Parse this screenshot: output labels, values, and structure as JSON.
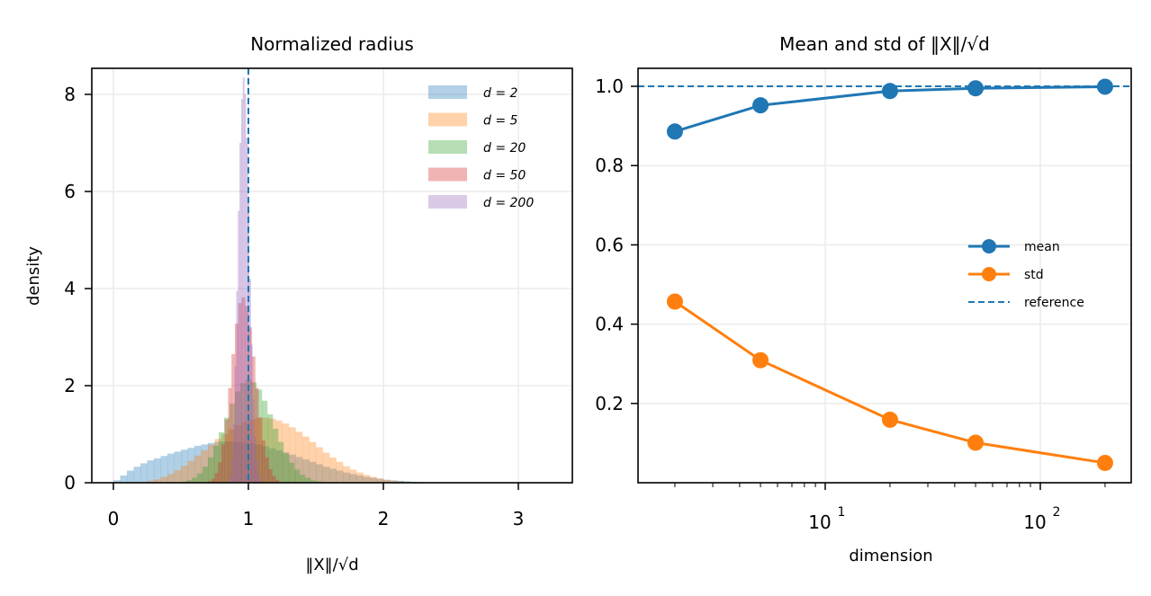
{
  "chart_data": [
    {
      "type": "histogram",
      "title": "Normalized radius",
      "xlabel": "‖X‖/√d",
      "ylabel": "density",
      "xlim": [
        -0.17,
        3.4
      ],
      "ylim": [
        0,
        8.5
      ],
      "xticks": [
        "0",
        "1",
        "2",
        "3"
      ],
      "xtick_values": [
        0,
        1,
        2,
        3
      ],
      "yticks": [
        "0",
        "2",
        "4",
        "6",
        "8"
      ],
      "ytick_values": [
        0,
        2,
        4,
        6,
        8
      ],
      "grid": true,
      "legend_position": "upper-right",
      "reference_line_x": 1,
      "series": [
        {
          "name": "d = 2",
          "d": 2,
          "color": "#1f77b4",
          "alpha": 0.35,
          "bin_start": 0.0,
          "bin_width": 0.05,
          "values": [
            0.05,
            0.15,
            0.25,
            0.33,
            0.4,
            0.46,
            0.5,
            0.55,
            0.6,
            0.64,
            0.68,
            0.72,
            0.76,
            0.79,
            0.82,
            0.84,
            0.85,
            0.85,
            0.84,
            0.83,
            0.81,
            0.79,
            0.75,
            0.71,
            0.67,
            0.63,
            0.58,
            0.53,
            0.48,
            0.43,
            0.38,
            0.33,
            0.29,
            0.25,
            0.21,
            0.18,
            0.15,
            0.12,
            0.1,
            0.08,
            0.06,
            0.05,
            0.04,
            0.03,
            0.02,
            0.015,
            0.01
          ]
        },
        {
          "name": "d = 5",
          "d": 5,
          "color": "#ff7f0e",
          "alpha": 0.35,
          "bin_start": 0.2,
          "bin_width": 0.05,
          "values": [
            0.02,
            0.04,
            0.07,
            0.12,
            0.18,
            0.26,
            0.35,
            0.45,
            0.56,
            0.67,
            0.78,
            0.9,
            1.0,
            1.1,
            1.18,
            1.25,
            1.3,
            1.33,
            1.34,
            1.32,
            1.28,
            1.22,
            1.14,
            1.05,
            0.95,
            0.84,
            0.73,
            0.62,
            0.52,
            0.43,
            0.34,
            0.27,
            0.21,
            0.16,
            0.12,
            0.09,
            0.06,
            0.04,
            0.03
          ]
        },
        {
          "name": "d = 20",
          "d": 20,
          "color": "#2ca02c",
          "alpha": 0.35,
          "bin_start": 0.5,
          "bin_width": 0.04,
          "values": [
            0.02,
            0.05,
            0.1,
            0.19,
            0.33,
            0.52,
            0.76,
            1.04,
            1.34,
            1.63,
            1.88,
            2.05,
            2.12,
            2.07,
            1.92,
            1.69,
            1.41,
            1.11,
            0.84,
            0.6,
            0.41,
            0.27,
            0.16,
            0.1,
            0.05,
            0.03
          ]
        },
        {
          "name": "d = 50",
          "d": 50,
          "color": "#d62728",
          "alpha": 0.35,
          "bin_start": 0.7,
          "bin_width": 0.025,
          "values": [
            0.03,
            0.08,
            0.2,
            0.42,
            0.79,
            1.3,
            1.95,
            2.65,
            3.28,
            3.7,
            3.82,
            3.64,
            3.2,
            2.6,
            1.95,
            1.35,
            0.87,
            0.52,
            0.28,
            0.14,
            0.06,
            0.02
          ]
        },
        {
          "name": "d = 200",
          "d": 200,
          "color": "#9467bd",
          "alpha": 0.35,
          "bin_start": 0.85,
          "bin_width": 0.012,
          "values": [
            0.04,
            0.16,
            0.5,
            1.2,
            2.4,
            3.95,
            5.6,
            7.0,
            7.9,
            8.35,
            8.0,
            7.1,
            5.75,
            4.2,
            2.85,
            1.72,
            0.94,
            0.45,
            0.19,
            0.07,
            0.02
          ]
        }
      ]
    },
    {
      "type": "line",
      "title": "Mean and std of ‖X‖/√d",
      "xlabel": "dimension",
      "ylabel": "",
      "xscale": "log",
      "xlim": [
        1.5,
        260
      ],
      "ylim": [
        0.0,
        1.04
      ],
      "xticks": [
        "10",
        "10"
      ],
      "xtick_exponents": [
        "1",
        "2"
      ],
      "xtick_values": [
        10,
        100
      ],
      "yticks": [
        "0.2",
        "0.4",
        "0.6",
        "0.8",
        "1.0"
      ],
      "ytick_values": [
        0.2,
        0.4,
        0.6,
        0.8,
        1.0
      ],
      "grid": true,
      "legend_position": "center-right",
      "x": [
        2,
        5,
        20,
        50,
        200
      ],
      "series": [
        {
          "name": "mean",
          "color": "#1f77b4",
          "values": [
            0.886,
            0.952,
            0.988,
            0.995,
            0.999
          ]
        },
        {
          "name": "std",
          "color": "#ff7f0e",
          "values": [
            0.457,
            0.309,
            0.159,
            0.101,
            0.05
          ]
        },
        {
          "name": "reference",
          "color": "#1f77b4",
          "style": "dashed",
          "values": [
            1.0,
            1.0,
            1.0,
            1.0,
            1.0
          ]
        }
      ]
    }
  ]
}
